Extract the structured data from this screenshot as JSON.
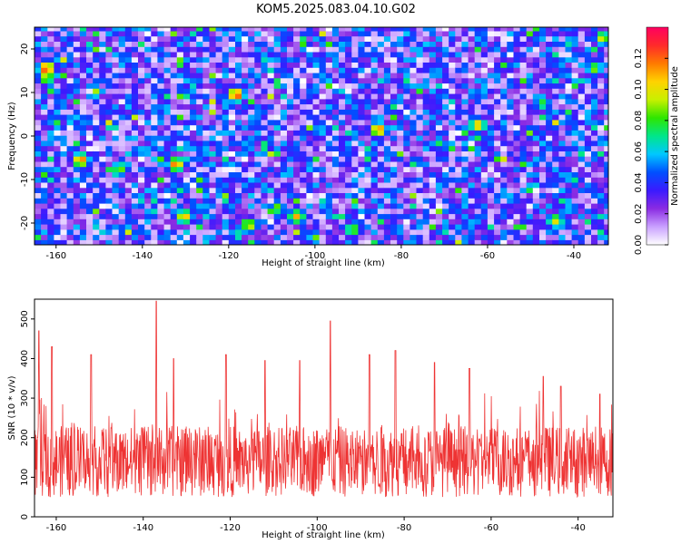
{
  "title": "KOM5.2025.083.04.10.G02",
  "chart_data": [
    {
      "type": "heatmap",
      "xlabel": "Height of straight line (km)",
      "ylabel": "Frequency (Hz)",
      "xlim": [
        -165,
        -32
      ],
      "ylim": [
        -25,
        25
      ],
      "x_ticks": [
        -160,
        -140,
        -120,
        -100,
        -80,
        -60,
        -40
      ],
      "y_ticks": [
        -20,
        -10,
        0,
        10,
        20
      ],
      "colorbar": {
        "label": "Normalized spectral amplitude",
        "range": [
          0,
          0.14
        ],
        "ticks": [
          0.0,
          0.02,
          0.04,
          0.06,
          0.08,
          0.1,
          0.12
        ],
        "tick_labels": [
          "0.00",
          "0.02",
          "0.04",
          "0.06",
          "0.08",
          "0.10",
          "0.12"
        ],
        "colors": [
          "#ffffff",
          "#c9a0ff",
          "#8a2be2",
          "#3a1aff",
          "#0050ff",
          "#00c8ff",
          "#00e68a",
          "#2ee600",
          "#c8f000",
          "#ffd200",
          "#ff7a00",
          "#ff2a2a",
          "#ff0060"
        ]
      },
      "grid": false,
      "hotspots": [
        {
          "x": -163,
          "y": 15,
          "value": 0.13
        },
        {
          "x": -163,
          "y": 13,
          "value": 0.1
        },
        {
          "x": -155,
          "y": -6,
          "value": 0.12
        },
        {
          "x": -146,
          "y": -8,
          "value": 0.09
        },
        {
          "x": -133,
          "y": -7,
          "value": 0.12
        },
        {
          "x": -131,
          "y": -19,
          "value": 0.11
        },
        {
          "x": -119,
          "y": 9,
          "value": 0.13
        },
        {
          "x": -116,
          "y": -21,
          "value": 0.1
        },
        {
          "x": -105,
          "y": -19,
          "value": 0.11
        },
        {
          "x": -92,
          "y": -22,
          "value": 0.09
        },
        {
          "x": -86,
          "y": 1,
          "value": 0.12
        },
        {
          "x": -63,
          "y": 2,
          "value": 0.11
        },
        {
          "x": -48,
          "y": 7,
          "value": 0.08
        },
        {
          "x": -45,
          "y": -20,
          "value": 0.1
        },
        {
          "x": -36,
          "y": 15,
          "value": 0.09
        },
        {
          "x": -34,
          "y": 22,
          "value": 0.1
        }
      ],
      "background_level": 0.03,
      "cell_size": {
        "dx": 1.5,
        "dy": 1.2
      }
    },
    {
      "type": "line",
      "xlabel": "Height of straight line (km)",
      "ylabel": "SNR (10 * v/v)",
      "xlim": [
        -165,
        -32
      ],
      "ylim": [
        0,
        550
      ],
      "x_ticks": [
        -160,
        -140,
        -120,
        -100,
        -80,
        -60,
        -40
      ],
      "y_ticks": [
        0,
        100,
        200,
        300,
        400,
        500
      ],
      "grid": false,
      "series": [
        {
          "color": "#ee3333",
          "baseline": 140,
          "spread": 90,
          "peaks": [
            {
              "x": -164,
              "y": 470
            },
            {
              "x": -161,
              "y": 430
            },
            {
              "x": -152,
              "y": 410
            },
            {
              "x": -137,
              "y": 545
            },
            {
              "x": -133,
              "y": 400
            },
            {
              "x": -121,
              "y": 410
            },
            {
              "x": -112,
              "y": 395
            },
            {
              "x": -104,
              "y": 395
            },
            {
              "x": -97,
              "y": 495
            },
            {
              "x": -88,
              "y": 410
            },
            {
              "x": -82,
              "y": 420
            },
            {
              "x": -73,
              "y": 390
            },
            {
              "x": -65,
              "y": 375
            },
            {
              "x": -48,
              "y": 355
            },
            {
              "x": -44,
              "y": 330
            },
            {
              "x": -35,
              "y": 310
            }
          ],
          "samples": 1400
        }
      ]
    }
  ]
}
